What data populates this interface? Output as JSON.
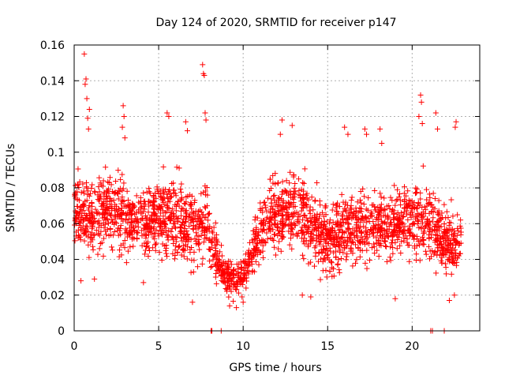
{
  "chart_data": {
    "type": "scatter",
    "title": "Day 124 of 2020, SRMTID for receiver p147",
    "xlabel": "GPS time / hours",
    "ylabel": "SRMTID / TECUs",
    "xlim": [
      0,
      24
    ],
    "ylim": [
      0,
      0.16
    ],
    "x_ticks": [
      0,
      5,
      10,
      15,
      20
    ],
    "x_tick_labels": [
      "0",
      "5",
      "10",
      "15",
      "20"
    ],
    "y_ticks": [
      0,
      0.02,
      0.04,
      0.06,
      0.08,
      0.1,
      0.12,
      0.14,
      0.16
    ],
    "y_tick_labels": [
      "0",
      "0.02",
      "0.04",
      "0.06",
      "0.08",
      "0.1",
      "0.12",
      "0.14",
      "0.16"
    ],
    "grid": true,
    "marker": "plus",
    "color": "#ff0000",
    "series": [
      {
        "name": "SRMTID",
        "trend": [
          {
            "x": 0.0,
            "y": 0.07,
            "spread": 0.018
          },
          {
            "x": 1.0,
            "y": 0.06,
            "spread": 0.02
          },
          {
            "x": 2.0,
            "y": 0.068,
            "spread": 0.018
          },
          {
            "x": 3.0,
            "y": 0.062,
            "spread": 0.018
          },
          {
            "x": 4.0,
            "y": 0.06,
            "spread": 0.016
          },
          {
            "x": 5.0,
            "y": 0.065,
            "spread": 0.018
          },
          {
            "x": 6.0,
            "y": 0.062,
            "spread": 0.02
          },
          {
            "x": 7.0,
            "y": 0.055,
            "spread": 0.02
          },
          {
            "x": 7.8,
            "y": 0.06,
            "spread": 0.02
          },
          {
            "x": 8.5,
            "y": 0.04,
            "spread": 0.012
          },
          {
            "x": 9.0,
            "y": 0.03,
            "spread": 0.008
          },
          {
            "x": 10.0,
            "y": 0.03,
            "spread": 0.008
          },
          {
            "x": 10.5,
            "y": 0.045,
            "spread": 0.012
          },
          {
            "x": 11.0,
            "y": 0.055,
            "spread": 0.016
          },
          {
            "x": 12.0,
            "y": 0.065,
            "spread": 0.018
          },
          {
            "x": 13.0,
            "y": 0.068,
            "spread": 0.018
          },
          {
            "x": 14.0,
            "y": 0.06,
            "spread": 0.02
          },
          {
            "x": 15.0,
            "y": 0.05,
            "spread": 0.018
          },
          {
            "x": 16.0,
            "y": 0.058,
            "spread": 0.02
          },
          {
            "x": 17.0,
            "y": 0.058,
            "spread": 0.018
          },
          {
            "x": 18.0,
            "y": 0.06,
            "spread": 0.018
          },
          {
            "x": 19.0,
            "y": 0.058,
            "spread": 0.018
          },
          {
            "x": 20.0,
            "y": 0.065,
            "spread": 0.018
          },
          {
            "x": 21.0,
            "y": 0.06,
            "spread": 0.02
          },
          {
            "x": 22.0,
            "y": 0.048,
            "spread": 0.016
          },
          {
            "x": 22.9,
            "y": 0.05,
            "spread": 0.016
          }
        ],
        "points": [
          {
            "x": 0.6,
            "y": 0.155
          },
          {
            "x": 0.7,
            "y": 0.141
          },
          {
            "x": 0.65,
            "y": 0.138
          },
          {
            "x": 0.75,
            "y": 0.13
          },
          {
            "x": 0.8,
            "y": 0.119
          },
          {
            "x": 0.9,
            "y": 0.124
          },
          {
            "x": 0.85,
            "y": 0.113
          },
          {
            "x": 2.9,
            "y": 0.126
          },
          {
            "x": 2.95,
            "y": 0.12
          },
          {
            "x": 2.85,
            "y": 0.114
          },
          {
            "x": 3.0,
            "y": 0.108
          },
          {
            "x": 5.5,
            "y": 0.122
          },
          {
            "x": 5.6,
            "y": 0.12
          },
          {
            "x": 6.6,
            "y": 0.117
          },
          {
            "x": 6.7,
            "y": 0.112
          },
          {
            "x": 7.6,
            "y": 0.149
          },
          {
            "x": 7.65,
            "y": 0.144
          },
          {
            "x": 7.7,
            "y": 0.143
          },
          {
            "x": 7.75,
            "y": 0.122
          },
          {
            "x": 7.8,
            "y": 0.118
          },
          {
            "x": 12.3,
            "y": 0.118
          },
          {
            "x": 12.2,
            "y": 0.11
          },
          {
            "x": 12.9,
            "y": 0.115
          },
          {
            "x": 16.0,
            "y": 0.114
          },
          {
            "x": 16.2,
            "y": 0.11
          },
          {
            "x": 17.2,
            "y": 0.113
          },
          {
            "x": 17.3,
            "y": 0.11
          },
          {
            "x": 18.1,
            "y": 0.113
          },
          {
            "x": 18.2,
            "y": 0.105
          },
          {
            "x": 20.5,
            "y": 0.132
          },
          {
            "x": 20.55,
            "y": 0.128
          },
          {
            "x": 20.4,
            "y": 0.12
          },
          {
            "x": 20.6,
            "y": 0.116
          },
          {
            "x": 21.4,
            "y": 0.122
          },
          {
            "x": 21.5,
            "y": 0.113
          },
          {
            "x": 22.6,
            "y": 0.117
          },
          {
            "x": 22.55,
            "y": 0.114
          },
          {
            "x": 8.1,
            "y": 0.0
          },
          {
            "x": 8.15,
            "y": 0.0
          },
          {
            "x": 8.7,
            "y": 0.0
          },
          {
            "x": 21.1,
            "y": 0.0
          },
          {
            "x": 21.2,
            "y": 0.0
          },
          {
            "x": 21.9,
            "y": 0.0
          },
          {
            "x": 7.0,
            "y": 0.016
          },
          {
            "x": 9.2,
            "y": 0.014
          },
          {
            "x": 9.6,
            "y": 0.013
          },
          {
            "x": 10.0,
            "y": 0.016
          },
          {
            "x": 13.5,
            "y": 0.02
          },
          {
            "x": 14.0,
            "y": 0.019
          },
          {
            "x": 19.0,
            "y": 0.018
          },
          {
            "x": 22.2,
            "y": 0.017
          },
          {
            "x": 22.5,
            "y": 0.02
          },
          {
            "x": 0.4,
            "y": 0.028
          },
          {
            "x": 1.2,
            "y": 0.029
          },
          {
            "x": 4.1,
            "y": 0.027
          }
        ]
      }
    ]
  }
}
